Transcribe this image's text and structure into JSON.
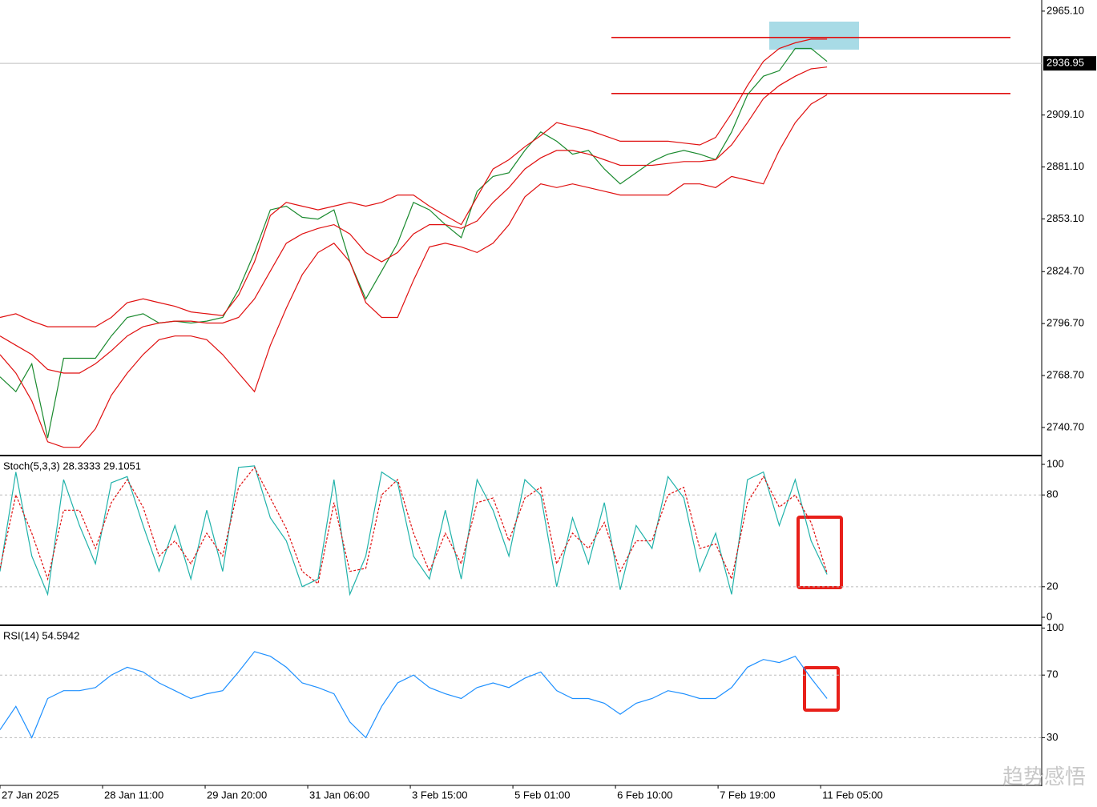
{
  "chart_data": [
    {
      "type": "line",
      "xlim": [
        0,
        65.5
      ],
      "ylim": [
        2726.0,
        2971.1
      ],
      "yticks": [
        {
          "value": 2740.7,
          "label": "2740.70"
        },
        {
          "value": 2768.7,
          "label": "2768.70"
        },
        {
          "value": 2796.7,
          "label": "2796.70"
        },
        {
          "value": 2824.7,
          "label": "2824.70"
        },
        {
          "value": 2853.1,
          "label": "2853.10"
        },
        {
          "value": 2881.1,
          "label": "2881.10"
        },
        {
          "value": 2909.1,
          "label": "2909.10"
        },
        {
          "value": 2965.1,
          "label": "2965.10"
        }
      ],
      "current_price": {
        "value": 2936.95,
        "label": "2936.95"
      },
      "levels": [
        2950.9,
        2920.7
      ],
      "series": [
        {
          "color": "#1a8a2e",
          "values": [
            2768,
            2760,
            2775,
            2735,
            2778,
            2778,
            2778,
            2790,
            2800,
            2802,
            2797,
            2798,
            2797,
            2798,
            2800,
            2815,
            2835,
            2858,
            2860,
            2854,
            2853,
            2858,
            2830,
            2810,
            2825,
            2840,
            2862,
            2858,
            2850,
            2843,
            2868,
            2876,
            2878,
            2890,
            2900,
            2895,
            2888,
            2890,
            2880,
            2872,
            2878,
            2884,
            2888,
            2890,
            2888,
            2885,
            2900,
            2920,
            2930,
            2933,
            2945,
            2945,
            2938
          ]
        },
        {
          "color": "#e01010",
          "values": [
            2800,
            2802,
            2798,
            2795,
            2795,
            2795,
            2795,
            2800,
            2808,
            2810,
            2808,
            2806,
            2803,
            2802,
            2801,
            2812,
            2830,
            2855,
            2862,
            2860,
            2858,
            2860,
            2862,
            2860,
            2862,
            2866,
            2866,
            2860,
            2855,
            2850,
            2865,
            2880,
            2885,
            2892,
            2898,
            2905,
            2903,
            2901,
            2898,
            2895,
            2895,
            2895,
            2895,
            2894,
            2893,
            2897,
            2910,
            2925,
            2938,
            2945,
            2948,
            2950,
            2950
          ]
        },
        {
          "color": "#e01010",
          "values": [
            2790,
            2785,
            2780,
            2772,
            2770,
            2770,
            2775,
            2782,
            2790,
            2795,
            2797,
            2798,
            2798,
            2797,
            2797,
            2800,
            2810,
            2825,
            2840,
            2845,
            2848,
            2850,
            2845,
            2835,
            2830,
            2835,
            2845,
            2850,
            2850,
            2848,
            2852,
            2862,
            2870,
            2880,
            2886,
            2890,
            2890,
            2888,
            2885,
            2882,
            2882,
            2882,
            2883,
            2884,
            2884,
            2885,
            2893,
            2905,
            2918,
            2925,
            2930,
            2934,
            2935
          ]
        },
        {
          "color": "#e01010",
          "values": [
            2780,
            2770,
            2755,
            2733,
            2730,
            2730,
            2740,
            2758,
            2770,
            2780,
            2788,
            2790,
            2790,
            2788,
            2780,
            2770,
            2760,
            2785,
            2805,
            2823,
            2835,
            2840,
            2830,
            2808,
            2800,
            2800,
            2820,
            2838,
            2840,
            2838,
            2835,
            2840,
            2850,
            2865,
            2872,
            2870,
            2872,
            2870,
            2868,
            2866,
            2866,
            2866,
            2866,
            2872,
            2872,
            2870,
            2876,
            2874,
            2872,
            2890,
            2905,
            2915,
            2920
          ]
        }
      ]
    },
    {
      "type": "line",
      "title": "Stoch(5,3,3) 28.3333 29.1051",
      "xlim": [
        0,
        65.5
      ],
      "ylim": [
        -4.7,
        104.2
      ],
      "yticks": [
        0,
        20,
        80,
        100
      ],
      "levels": [
        20,
        80
      ],
      "series": [
        {
          "color": "#20b2aa",
          "values": [
            30,
            95,
            40,
            15,
            90,
            60,
            35,
            88,
            92,
            60,
            30,
            60,
            25,
            70,
            30,
            98,
            99,
            65,
            50,
            20,
            25,
            90,
            15,
            40,
            95,
            88,
            40,
            25,
            70,
            25,
            90,
            70,
            40,
            90,
            80,
            20,
            65,
            35,
            75,
            18,
            60,
            45,
            92,
            78,
            30,
            55,
            15,
            90,
            95,
            60,
            90,
            50,
            28
          ]
        },
        {
          "color": "#e01010",
          "dashed": true,
          "values": [
            32,
            80,
            55,
            25,
            70,
            70,
            45,
            75,
            90,
            72,
            40,
            50,
            35,
            55,
            40,
            85,
            98,
            78,
            58,
            30,
            22,
            75,
            30,
            32,
            80,
            90,
            55,
            30,
            55,
            35,
            75,
            78,
            50,
            78,
            85,
            35,
            55,
            45,
            62,
            30,
            50,
            50,
            80,
            85,
            45,
            48,
            25,
            75,
            92,
            72,
            80,
            62,
            29
          ]
        }
      ]
    },
    {
      "type": "line",
      "title": "RSI(14) 54.5942",
      "xlim": [
        0,
        65.5
      ],
      "ylim": [
        0,
        100.8
      ],
      "yticks": [
        30,
        70,
        100
      ],
      "levels": [
        30,
        70
      ],
      "xticks": [
        {
          "value": 0,
          "label": "27 Jan 2025"
        },
        {
          "value": 6.45,
          "label": "28 Jan 11:00"
        },
        {
          "value": 12.9,
          "label": "29 Jan 20:00"
        },
        {
          "value": 19.35,
          "label": "31 Jan 06:00"
        },
        {
          "value": 25.8,
          "label": "3 Feb 15:00"
        },
        {
          "value": 32.25,
          "label": "5 Feb 01:00"
        },
        {
          "value": 38.7,
          "label": "6 Feb 10:00"
        },
        {
          "value": 45.15,
          "label": "7 Feb 19:00"
        },
        {
          "value": 51.6,
          "label": "11 Feb 05:00"
        }
      ],
      "series": [
        {
          "color": "#1e90ff",
          "values": [
            35,
            50,
            30,
            55,
            60,
            60,
            62,
            70,
            75,
            72,
            65,
            60,
            55,
            58,
            60,
            72,
            85,
            82,
            75,
            65,
            62,
            58,
            40,
            30,
            50,
            65,
            70,
            62,
            58,
            55,
            62,
            65,
            62,
            68,
            72,
            60,
            55,
            55,
            52,
            45,
            52,
            55,
            60,
            58,
            55,
            55,
            62,
            75,
            80,
            78,
            82,
            68,
            55
          ]
        }
      ]
    }
  ],
  "watermark": "趋势感悟"
}
